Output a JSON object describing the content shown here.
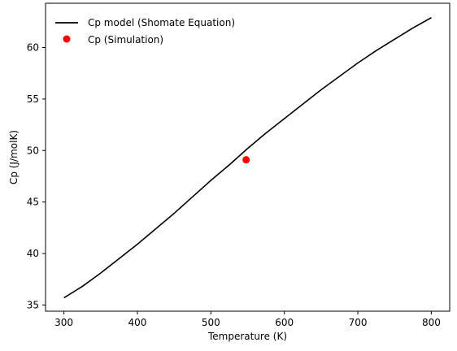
{
  "chart_data": {
    "type": "line",
    "title": "",
    "xlabel": "Temperature (K)",
    "ylabel": "Cp (J/molK)",
    "xlim": [
      275,
      825
    ],
    "ylim": [
      34.4,
      64.3
    ],
    "xticks": [
      300,
      400,
      500,
      600,
      700,
      800
    ],
    "yticks": [
      35,
      40,
      45,
      50,
      55,
      60
    ],
    "grid": false,
    "legend_position": "top-left",
    "series": [
      {
        "name": "Cp model (Shomate Equation)",
        "kind": "line",
        "color": "#000000",
        "x": [
          300,
          325,
          350,
          375,
          400,
          425,
          450,
          475,
          500,
          525,
          550,
          575,
          600,
          625,
          650,
          675,
          700,
          725,
          750,
          775,
          800
        ],
        "y": [
          35.7,
          36.8,
          38.1,
          39.5,
          40.9,
          42.4,
          43.9,
          45.5,
          47.1,
          48.6,
          50.2,
          51.7,
          53.1,
          54.5,
          55.9,
          57.2,
          58.5,
          59.7,
          60.8,
          61.9,
          62.9
        ]
      },
      {
        "name": "Cp (Simulation)",
        "kind": "scatter",
        "color": "#ff0000",
        "x": [
          548
        ],
        "y": [
          49.1
        ]
      }
    ]
  }
}
